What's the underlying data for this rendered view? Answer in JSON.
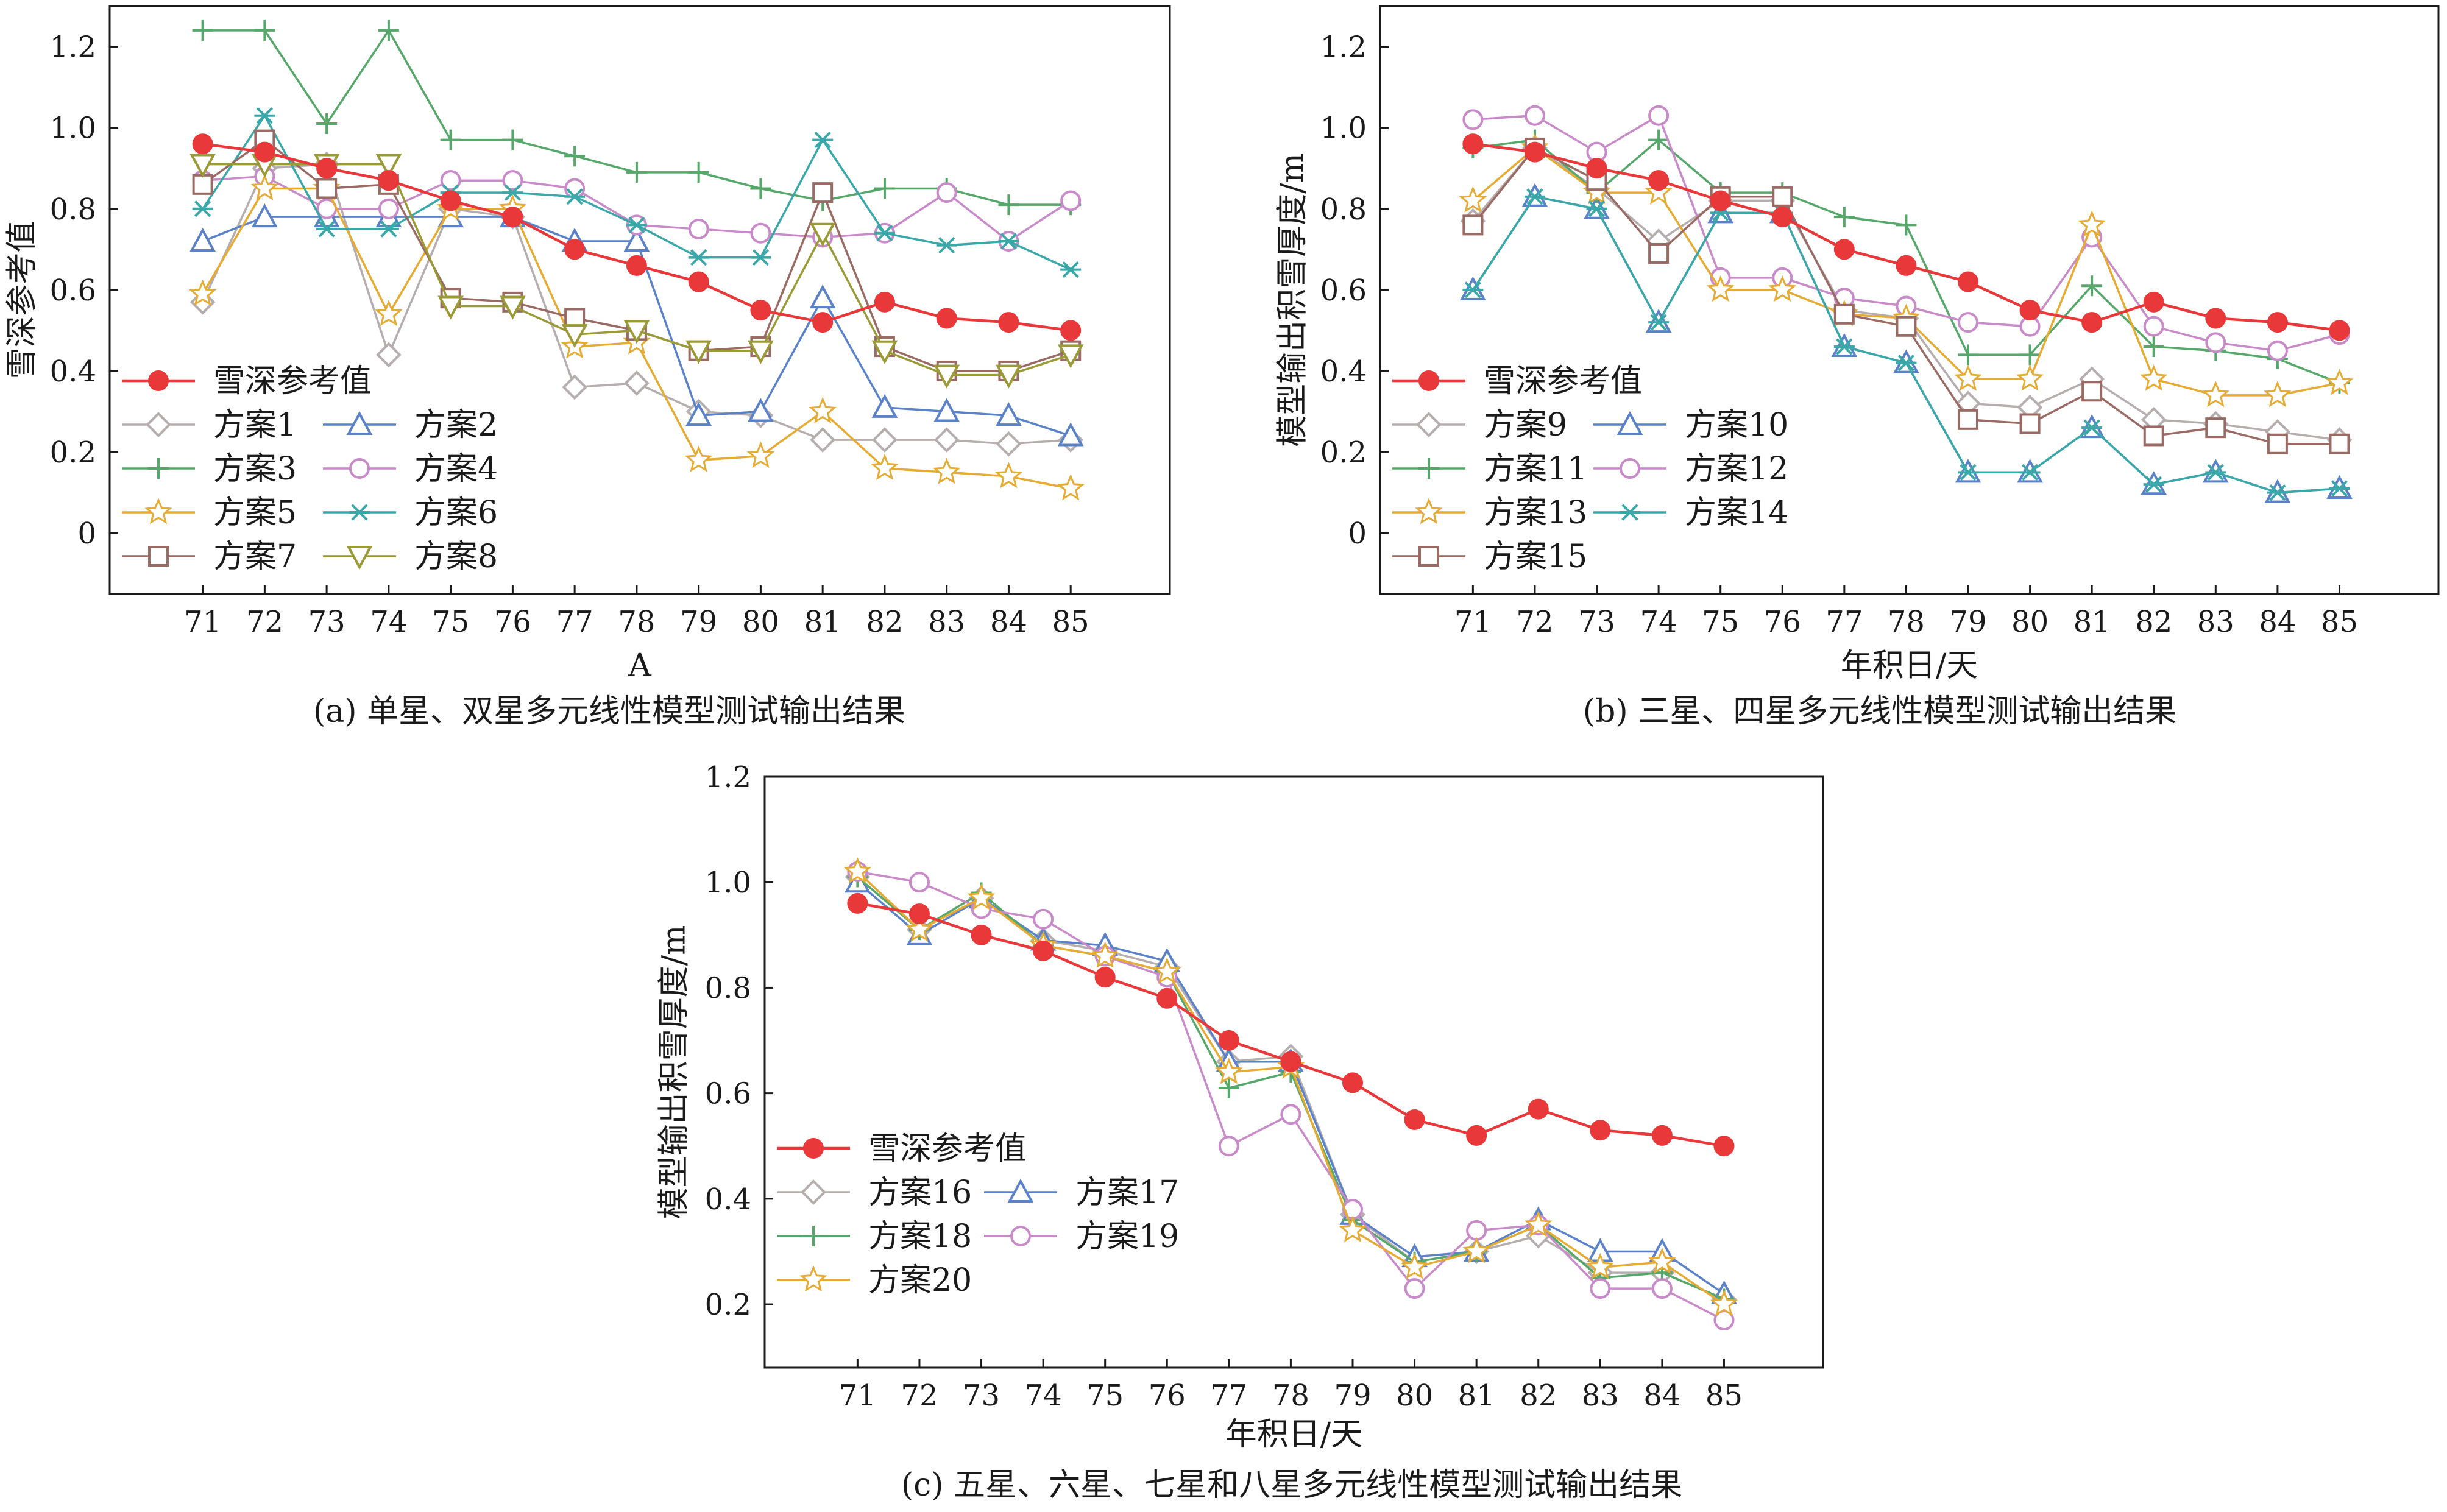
{
  "chart_data": [
    {
      "type": "line",
      "caption": "(a) 单星、双星多元线性模型测试输出结果",
      "xlabel": "A",
      "ylabel": "雪深参考值",
      "x": [
        71,
        72,
        73,
        74,
        75,
        76,
        77,
        78,
        79,
        80,
        81,
        82,
        83,
        84,
        85
      ],
      "xlim": [
        69.5,
        86.6
      ],
      "ylim": [
        -0.15,
        1.3
      ],
      "yticks": [
        0,
        0.2,
        0.4,
        0.6,
        0.8,
        1.0,
        1.2
      ],
      "ytick_labels": [
        "0",
        "0.2",
        "0.4",
        "0.6",
        "0.8",
        "1.0",
        "1.2"
      ],
      "legend_position": "lower-left",
      "series": [
        {
          "name": "雪深参考值",
          "color": "#e8383a",
          "marker": "dot",
          "values": [
            0.96,
            0.94,
            0.9,
            0.87,
            0.82,
            0.78,
            0.7,
            0.66,
            0.62,
            0.55,
            0.52,
            0.57,
            0.53,
            0.52,
            0.5
          ]
        },
        {
          "name": "方案1",
          "color": "#b6aeae",
          "marker": "diamond",
          "values": [
            0.57,
            0.9,
            0.91,
            0.44,
            0.8,
            0.78,
            0.36,
            0.37,
            0.3,
            0.29,
            0.23,
            0.23,
            0.23,
            0.22,
            0.23
          ]
        },
        {
          "name": "方案2",
          "color": "#5b82c8",
          "marker": "triangle",
          "values": [
            0.72,
            0.78,
            0.78,
            0.78,
            0.78,
            0.78,
            0.72,
            0.72,
            0.29,
            0.3,
            0.58,
            0.31,
            0.3,
            0.29,
            0.24
          ]
        },
        {
          "name": "方案3",
          "color": "#56a86a",
          "marker": "plus",
          "values": [
            1.24,
            1.24,
            1.01,
            1.24,
            0.97,
            0.97,
            0.93,
            0.89,
            0.89,
            0.85,
            0.82,
            0.85,
            0.85,
            0.81,
            0.81
          ]
        },
        {
          "name": "方案4",
          "color": "#c88ac8",
          "marker": "circle",
          "values": [
            0.87,
            0.88,
            0.8,
            0.8,
            0.87,
            0.87,
            0.85,
            0.76,
            0.75,
            0.74,
            0.73,
            0.74,
            0.84,
            0.72,
            0.82
          ]
        },
        {
          "name": "方案5",
          "color": "#e5ab33",
          "marker": "star",
          "values": [
            0.59,
            0.85,
            0.85,
            0.54,
            0.8,
            0.8,
            0.46,
            0.47,
            0.18,
            0.19,
            0.3,
            0.16,
            0.15,
            0.14,
            0.11
          ]
        },
        {
          "name": "方案6",
          "color": "#3aa8a8",
          "marker": "asterisk",
          "values": [
            0.8,
            1.03,
            0.75,
            0.75,
            0.84,
            0.84,
            0.83,
            0.76,
            0.68,
            0.68,
            0.97,
            0.74,
            0.71,
            0.72,
            0.65
          ]
        },
        {
          "name": "方案7",
          "color": "#9a6a64",
          "marker": "square",
          "values": [
            0.86,
            0.97,
            0.85,
            0.86,
            0.58,
            0.57,
            0.53,
            0.5,
            0.45,
            0.46,
            0.84,
            0.46,
            0.4,
            0.4,
            0.45
          ]
        },
        {
          "name": "方案8",
          "color": "#9a9a36",
          "marker": "tridown",
          "values": [
            0.91,
            0.91,
            0.91,
            0.91,
            0.56,
            0.56,
            0.49,
            0.5,
            0.45,
            0.45,
            0.74,
            0.45,
            0.39,
            0.39,
            0.44
          ]
        }
      ]
    },
    {
      "type": "line",
      "caption": "(b) 三星、四星多元线性模型测试输出结果",
      "xlabel": "年积日/天",
      "ylabel": "模型输出积雪厚度/m",
      "x": [
        71,
        72,
        73,
        74,
        75,
        76,
        77,
        78,
        79,
        80,
        81,
        82,
        83,
        84,
        85
      ],
      "xlim": [
        69.5,
        86.6
      ],
      "ylim": [
        -0.15,
        1.3
      ],
      "yticks": [
        0,
        0.2,
        0.4,
        0.6,
        0.8,
        1.0,
        1.2
      ],
      "ytick_labels": [
        "0",
        "0.2",
        "0.4",
        "0.6",
        "0.8",
        "1.0",
        "1.2"
      ],
      "legend_position": "lower-left",
      "series": [
        {
          "name": "雪深参考值",
          "color": "#e8383a",
          "marker": "dot",
          "values": [
            0.96,
            0.94,
            0.9,
            0.87,
            0.82,
            0.78,
            0.7,
            0.66,
            0.62,
            0.55,
            0.52,
            0.57,
            0.53,
            0.52,
            0.5
          ]
        },
        {
          "name": "方案9",
          "color": "#b6aeae",
          "marker": "diamond",
          "values": [
            0.77,
            0.95,
            0.85,
            0.72,
            0.82,
            0.82,
            0.55,
            0.53,
            0.32,
            0.31,
            0.38,
            0.28,
            0.27,
            0.25,
            0.23
          ]
        },
        {
          "name": "方案10",
          "color": "#5b82c8",
          "marker": "triangle",
          "values": [
            0.6,
            0.83,
            0.8,
            0.52,
            0.79,
            0.79,
            0.46,
            0.42,
            0.15,
            0.15,
            0.26,
            0.12,
            0.15,
            0.1,
            0.11
          ]
        },
        {
          "name": "方案11",
          "color": "#56a86a",
          "marker": "plus",
          "values": [
            0.95,
            0.97,
            0.84,
            0.97,
            0.84,
            0.84,
            0.78,
            0.76,
            0.44,
            0.44,
            0.61,
            0.46,
            0.45,
            0.43,
            0.37
          ]
        },
        {
          "name": "方案12",
          "color": "#c88ac8",
          "marker": "circle",
          "values": [
            1.02,
            1.03,
            0.94,
            1.03,
            0.63,
            0.63,
            0.58,
            0.56,
            0.52,
            0.51,
            0.73,
            0.51,
            0.47,
            0.45,
            0.49
          ]
        },
        {
          "name": "方案13",
          "color": "#e5ab33",
          "marker": "star",
          "values": [
            0.82,
            0.95,
            0.84,
            0.84,
            0.6,
            0.6,
            0.54,
            0.53,
            0.38,
            0.38,
            0.76,
            0.38,
            0.34,
            0.34,
            0.37
          ]
        },
        {
          "name": "方案14",
          "color": "#3aa8a8",
          "marker": "asterisk",
          "values": [
            0.6,
            0.83,
            0.8,
            0.52,
            0.79,
            0.79,
            0.46,
            0.42,
            0.15,
            0.15,
            0.26,
            0.12,
            0.15,
            0.1,
            0.11
          ]
        },
        {
          "name": "方案15",
          "color": "#9a6a64",
          "marker": "square",
          "values": [
            0.76,
            0.95,
            0.87,
            0.69,
            0.83,
            0.83,
            0.54,
            0.51,
            0.28,
            0.27,
            0.35,
            0.24,
            0.26,
            0.22,
            0.22
          ]
        }
      ]
    },
    {
      "type": "line",
      "caption": "(c) 五星、六星、七星和八星多元线性模型测试输出结果",
      "xlabel": "年积日/天",
      "ylabel": "模型输出积雪厚度/m",
      "x": [
        71,
        72,
        73,
        74,
        75,
        76,
        77,
        78,
        79,
        80,
        81,
        82,
        83,
        84,
        85
      ],
      "xlim": [
        69.5,
        86.6
      ],
      "ylim": [
        0.08,
        1.2
      ],
      "yticks": [
        0.2,
        0.4,
        0.6,
        0.8,
        1.0,
        1.2
      ],
      "ytick_labels": [
        "0.2",
        "0.4",
        "0.6",
        "0.8",
        "1.0",
        "1.2"
      ],
      "legend_position": "lower-left",
      "series": [
        {
          "name": "雪深参考值",
          "color": "#e8383a",
          "marker": "dot",
          "values": [
            0.96,
            0.94,
            0.9,
            0.87,
            0.82,
            0.78,
            0.7,
            0.66,
            0.62,
            0.55,
            0.52,
            0.57,
            0.53,
            0.52,
            0.5
          ]
        },
        {
          "name": "方案16",
          "color": "#b6aeae",
          "marker": "diamond",
          "values": [
            1.01,
            0.91,
            0.97,
            0.89,
            0.87,
            0.84,
            0.66,
            0.67,
            0.37,
            0.28,
            0.3,
            0.33,
            0.26,
            0.26,
            0.21
          ]
        },
        {
          "name": "方案17",
          "color": "#5b82c8",
          "marker": "triangle",
          "values": [
            1.0,
            0.9,
            0.97,
            0.89,
            0.88,
            0.85,
            0.66,
            0.66,
            0.37,
            0.29,
            0.3,
            0.36,
            0.3,
            0.3,
            0.22
          ]
        },
        {
          "name": "方案18",
          "color": "#56a86a",
          "marker": "plus",
          "values": [
            1.01,
            0.91,
            0.98,
            0.88,
            0.86,
            0.83,
            0.61,
            0.64,
            0.36,
            0.28,
            0.3,
            0.35,
            0.25,
            0.26,
            0.21
          ]
        },
        {
          "name": "方案19",
          "color": "#c88ac8",
          "marker": "circle",
          "values": [
            1.02,
            1.0,
            0.95,
            0.93,
            0.86,
            0.82,
            0.5,
            0.56,
            0.38,
            0.23,
            0.34,
            0.35,
            0.23,
            0.23,
            0.17
          ]
        },
        {
          "name": "方案20",
          "color": "#e5ab33",
          "marker": "star",
          "values": [
            1.02,
            0.91,
            0.97,
            0.88,
            0.86,
            0.83,
            0.64,
            0.65,
            0.34,
            0.27,
            0.3,
            0.35,
            0.27,
            0.28,
            0.2
          ]
        }
      ]
    }
  ]
}
